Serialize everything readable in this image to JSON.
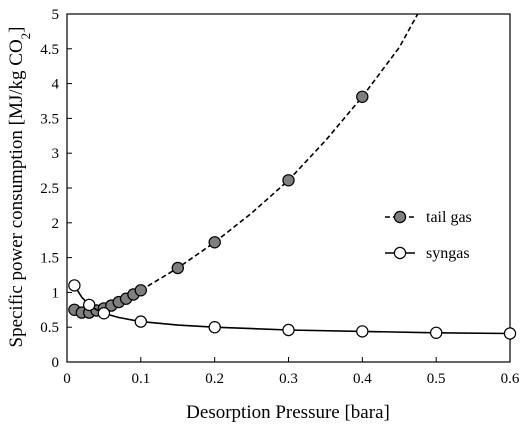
{
  "chart_data": {
    "type": "line",
    "title": "",
    "xlabel": "Desorption Pressure [bara]",
    "ylabel_main": "Specific power consumption [MJ/kg CO",
    "ylabel_sub": "2",
    "ylabel_end": "]",
    "xlim": [
      0,
      0.6
    ],
    "ylim": [
      0,
      5
    ],
    "xticks": [
      "0",
      "0.1",
      "0.2",
      "0.3",
      "0.4",
      "0.5",
      "0.6"
    ],
    "yticks": [
      "0",
      "0.5",
      "1",
      "1.5",
      "2",
      "2.5",
      "3",
      "3.5",
      "4",
      "4.5",
      "5"
    ],
    "grid": false,
    "legend_position": "right-middle",
    "series": [
      {
        "name": "tail gas",
        "line_style": "dashed",
        "marker": "filled-circle",
        "marker_color": "#7f7f7f",
        "x": [
          0.01,
          0.02,
          0.03,
          0.04,
          0.05,
          0.06,
          0.07,
          0.08,
          0.09,
          0.1,
          0.15,
          0.2,
          0.3,
          0.4
        ],
        "y": [
          0.75,
          0.71,
          0.71,
          0.74,
          0.77,
          0.81,
          0.86,
          0.91,
          0.97,
          1.03,
          1.35,
          1.72,
          2.61,
          3.81
        ],
        "curve_x": [
          0.01,
          0.02,
          0.03,
          0.04,
          0.05,
          0.06,
          0.07,
          0.08,
          0.09,
          0.1,
          0.15,
          0.2,
          0.25,
          0.3,
          0.35,
          0.4,
          0.45,
          0.475
        ],
        "curve_y": [
          0.75,
          0.71,
          0.71,
          0.74,
          0.77,
          0.81,
          0.86,
          0.91,
          0.97,
          1.03,
          1.35,
          1.72,
          2.14,
          2.61,
          3.18,
          3.81,
          4.52,
          5.0
        ]
      },
      {
        "name": "syngas",
        "line_style": "solid",
        "marker": "open-circle",
        "marker_color": "#ffffff",
        "x": [
          0.01,
          0.03,
          0.05,
          0.1,
          0.2,
          0.3,
          0.4,
          0.5,
          0.6
        ],
        "y": [
          1.1,
          0.82,
          0.7,
          0.58,
          0.5,
          0.46,
          0.44,
          0.42,
          0.41
        ],
        "curve_x": [
          0.01,
          0.02,
          0.03,
          0.04,
          0.05,
          0.07,
          0.1,
          0.15,
          0.2,
          0.3,
          0.4,
          0.5,
          0.6
        ],
        "curve_y": [
          1.1,
          0.93,
          0.82,
          0.75,
          0.7,
          0.64,
          0.58,
          0.53,
          0.5,
          0.46,
          0.44,
          0.42,
          0.41
        ]
      }
    ]
  }
}
